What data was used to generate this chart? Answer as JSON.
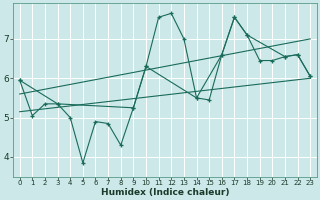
{
  "xlabel": "Humidex (Indice chaleur)",
  "bg_color": "#cce8e8",
  "line_color": "#1a6b5a",
  "grid_color": "#ffffff",
  "xlim": [
    -0.5,
    23.5
  ],
  "ylim": [
    3.5,
    7.9
  ],
  "yticks": [
    4,
    5,
    6,
    7
  ],
  "xticks": [
    0,
    1,
    2,
    3,
    4,
    5,
    6,
    7,
    8,
    9,
    10,
    11,
    12,
    13,
    14,
    15,
    16,
    17,
    18,
    19,
    20,
    21,
    22,
    23
  ],
  "series1_x": [
    0,
    1,
    2,
    3,
    4,
    5,
    6,
    7,
    8,
    9,
    10,
    11,
    12,
    13,
    14,
    15,
    16,
    17,
    18,
    19,
    20,
    21,
    22,
    23
  ],
  "series1_y": [
    5.95,
    5.05,
    5.35,
    5.35,
    5.0,
    3.85,
    4.9,
    4.85,
    4.3,
    5.25,
    6.3,
    7.55,
    7.65,
    7.0,
    5.5,
    5.45,
    6.6,
    7.55,
    7.1,
    6.45,
    6.45,
    6.55,
    6.6,
    6.05
  ],
  "series2_x": [
    0,
    3,
    9,
    10,
    14,
    16,
    17,
    18,
    21,
    22,
    23
  ],
  "series2_y": [
    5.95,
    5.35,
    5.25,
    6.3,
    5.5,
    6.6,
    7.55,
    7.1,
    6.55,
    6.6,
    6.05
  ],
  "trend1_x": [
    0,
    23
  ],
  "trend1_y": [
    5.15,
    6.0
  ],
  "trend2_x": [
    0,
    23
  ],
  "trend2_y": [
    5.6,
    7.0
  ]
}
